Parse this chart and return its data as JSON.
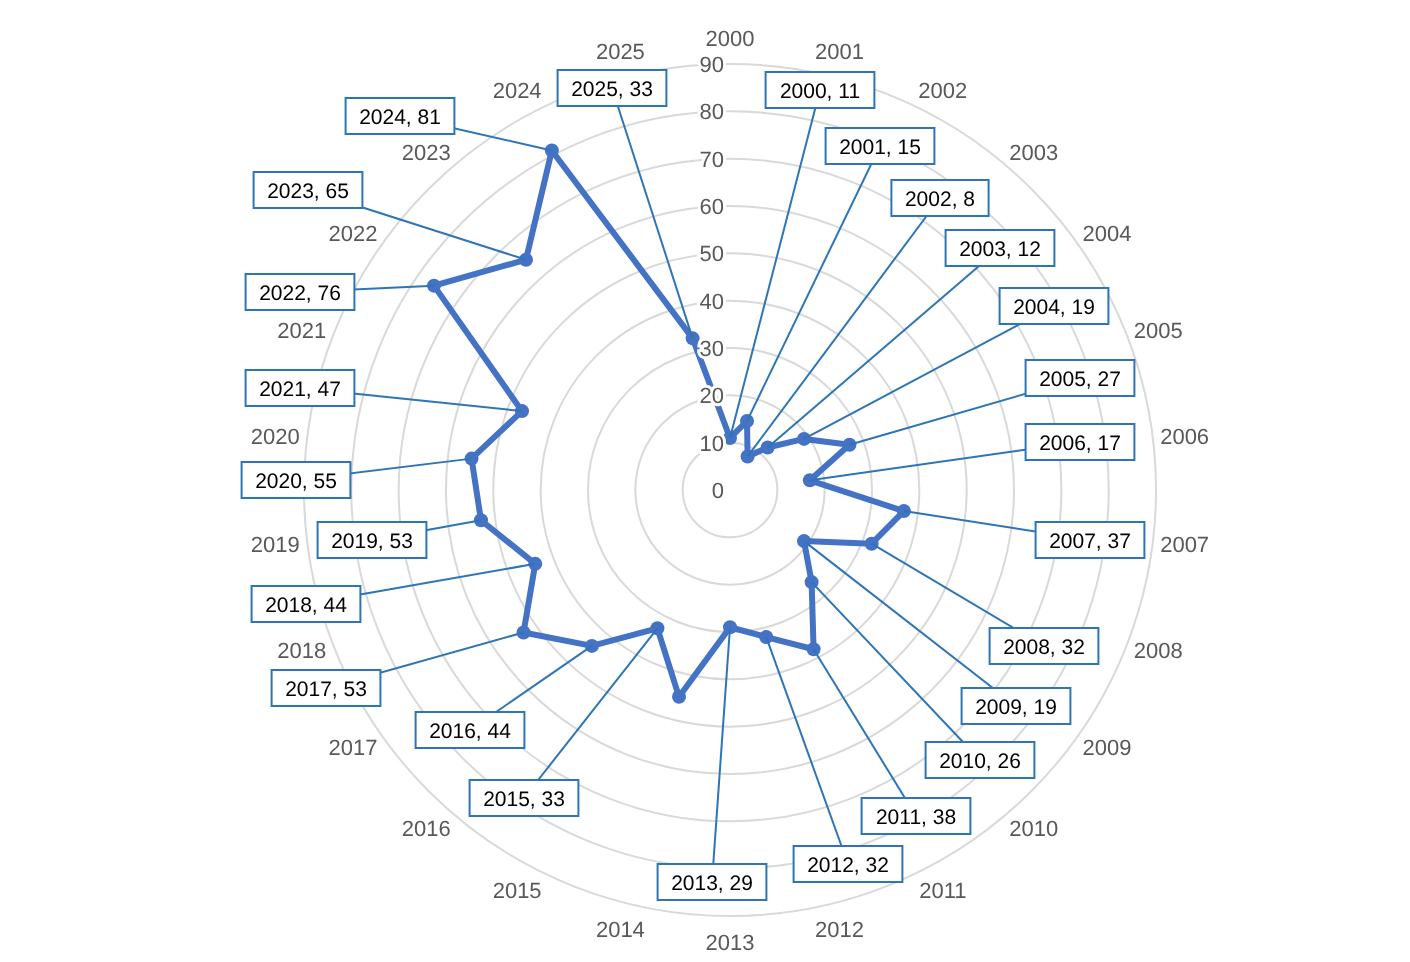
{
  "chart_data": {
    "type": "radar",
    "categories": [
      "2000",
      "2001",
      "2002",
      "2003",
      "2004",
      "2005",
      "2006",
      "2007",
      "2008",
      "2009",
      "2010",
      "2011",
      "2012",
      "2013",
      "2014",
      "2015",
      "2016",
      "2017",
      "2018",
      "2019",
      "2020",
      "2021",
      "2022",
      "2023",
      "2024",
      "2025"
    ],
    "series": [
      {
        "color": "#4472c4",
        "values": [
          11,
          15,
          8,
          12,
          19,
          27,
          17,
          37,
          32,
          19,
          26,
          38,
          32,
          29,
          45,
          33,
          44,
          53,
          44,
          53,
          55,
          47,
          76,
          65,
          81,
          33
        ],
        "value_labels": [
          "2000, 11",
          "2001, 15",
          "2002, 8",
          "2003, 12",
          "2004, 19",
          "2005, 27",
          "2006, 17",
          "2007, 37",
          "2008, 32",
          "2009, 19",
          "2010, 26",
          "2011, 38",
          "2012, 32",
          "2013, 29",
          null,
          "2015, 33",
          "2016, 44",
          "2017, 53",
          "2018, 44",
          "2019, 53",
          "2020, 55",
          "2021, 47",
          "2022, 76",
          "2023, 65",
          "2024, 81",
          "2025, 33"
        ]
      }
    ],
    "ylim": [
      0,
      90
    ],
    "yticks": [
      0,
      10,
      20,
      30,
      40,
      50,
      60,
      70,
      80,
      90
    ],
    "grid": true,
    "marker": "circle",
    "line_style": "solid"
  }
}
